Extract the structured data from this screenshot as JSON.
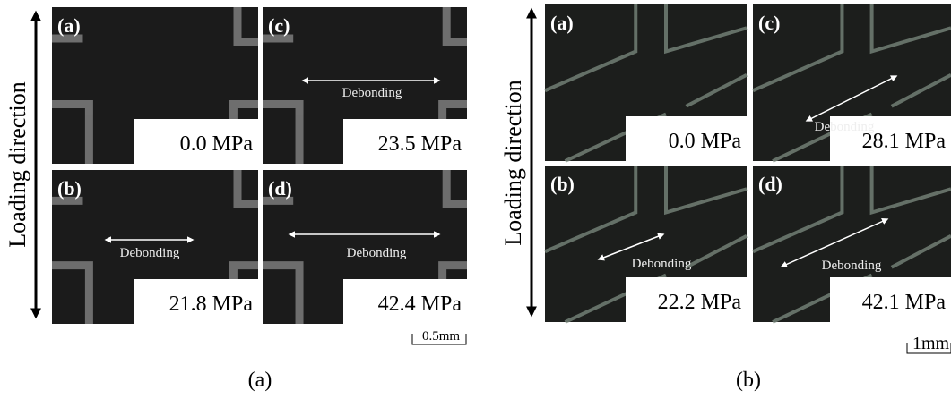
{
  "panels": [
    {
      "caption": "(a)",
      "axis_label": "Loading direction",
      "scale_bar": "0.5mm",
      "images": [
        {
          "label": "(a)",
          "stress": "0.0 MPa"
        },
        {
          "label": "(c)",
          "stress": "23.5 MPa",
          "annotation": "Debonding"
        },
        {
          "label": "(b)",
          "stress": "21.8 MPa",
          "annotation": "Debonding"
        },
        {
          "label": "(d)",
          "stress": "42.4 MPa",
          "annotation": "Debonding"
        }
      ]
    },
    {
      "caption": "(b)",
      "axis_label": "Loading direction",
      "scale_bar": "1mm",
      "images": [
        {
          "label": "(a)",
          "stress": "0.0 MPa"
        },
        {
          "label": "(c)",
          "stress": "28.1 MPa",
          "annotation": "Debonding"
        },
        {
          "label": "(b)",
          "stress": "22.2 MPa",
          "annotation": "Debonding"
        },
        {
          "label": "(d)",
          "stress": "42.1 MPa",
          "annotation": "Debonding"
        }
      ]
    }
  ]
}
